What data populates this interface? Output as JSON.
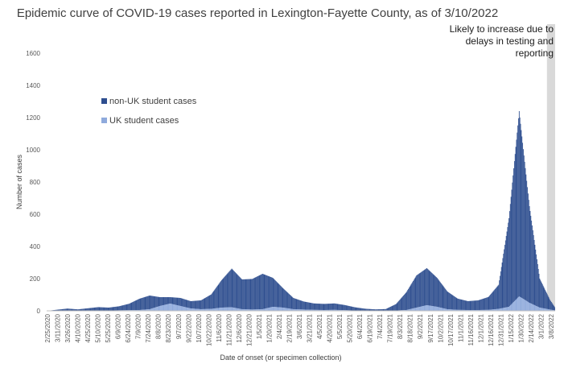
{
  "chart_data": {
    "type": "bar",
    "title": "Epidemic curve of COVID-19 cases reported in Lexington-Fayette County, as of 3/10/2022",
    "xlabel": "Date of onset (or specimen collection)",
    "ylabel": "Number of cases",
    "ylim": [
      0,
      1600
    ],
    "yticks": [
      0,
      200,
      400,
      600,
      800,
      1000,
      1200,
      1400,
      1600
    ],
    "stacked": true,
    "legend_position": "upper-left, inside plot",
    "x_range": [
      "2/25/2020",
      "3/8/2022"
    ],
    "x_tick_labels": [
      "2/25/2020",
      "3/11/2020",
      "3/26/2020",
      "4/10/2020",
      "4/25/2020",
      "5/10/2020",
      "5/25/2020",
      "6/9/2020",
      "6/24/2020",
      "7/9/2020",
      "7/24/2020",
      "8/8/2020",
      "8/23/2020",
      "9/7/2020",
      "9/22/2020",
      "10/7/2020",
      "10/22/2020",
      "11/6/2020",
      "11/21/2020",
      "12/6/2020",
      "12/21/2020",
      "1/5/2021",
      "1/20/2021",
      "2/4/2021",
      "2/19/2021",
      "3/6/2021",
      "3/21/2021",
      "4/5/2021",
      "4/20/2021",
      "5/5/2021",
      "5/20/2021",
      "6/4/2021",
      "6/19/2021",
      "7/4/2021",
      "7/19/2021",
      "8/3/2021",
      "8/18/2021",
      "9/2/2021",
      "9/17/2021",
      "10/2/2021",
      "10/17/2021",
      "11/1/2021",
      "11/16/2021",
      "12/1/2021",
      "12/16/2021",
      "12/31/2021",
      "1/15/2022",
      "1/30/2022",
      "2/14/2022",
      "3/1/2022",
      "3/8/2022"
    ],
    "series": [
      {
        "name": "non-UK student cases",
        "color": "#2e4e8f",
        "points": [
          [
            "2/25/2020",
            0
          ],
          [
            "3/11/2020",
            5
          ],
          [
            "3/26/2020",
            12
          ],
          [
            "4/10/2020",
            8
          ],
          [
            "4/25/2020",
            15
          ],
          [
            "5/10/2020",
            22
          ],
          [
            "5/25/2020",
            18
          ],
          [
            "6/9/2020",
            25
          ],
          [
            "6/24/2020",
            40
          ],
          [
            "7/9/2020",
            70
          ],
          [
            "7/24/2020",
            85
          ],
          [
            "8/8/2020",
            55
          ],
          [
            "8/23/2020",
            40
          ],
          [
            "9/7/2020",
            50
          ],
          [
            "9/22/2020",
            45
          ],
          [
            "10/7/2020",
            55
          ],
          [
            "10/22/2020",
            90
          ],
          [
            "11/6/2020",
            170
          ],
          [
            "11/21/2020",
            240
          ],
          [
            "12/6/2020",
            185
          ],
          [
            "12/21/2020",
            190
          ],
          [
            "1/5/2021",
            220
          ],
          [
            "1/20/2021",
            180
          ],
          [
            "2/4/2021",
            120
          ],
          [
            "2/19/2021",
            70
          ],
          [
            "3/6/2021",
            50
          ],
          [
            "3/21/2021",
            40
          ],
          [
            "4/5/2021",
            38
          ],
          [
            "4/20/2021",
            40
          ],
          [
            "5/5/2021",
            32
          ],
          [
            "5/20/2021",
            20
          ],
          [
            "6/4/2021",
            12
          ],
          [
            "6/19/2021",
            8
          ],
          [
            "7/4/2021",
            10
          ],
          [
            "7/19/2021",
            40
          ],
          [
            "8/3/2021",
            110
          ],
          [
            "8/18/2021",
            200
          ],
          [
            "9/2/2021",
            230
          ],
          [
            "9/17/2021",
            180
          ],
          [
            "10/2/2021",
            110
          ],
          [
            "10/17/2021",
            70
          ],
          [
            "11/1/2021",
            55
          ],
          [
            "11/16/2021",
            60
          ],
          [
            "12/1/2021",
            80
          ],
          [
            "12/16/2021",
            150
          ],
          [
            "12/31/2021",
            550
          ],
          [
            "1/15/2022",
            1150
          ],
          [
            "1/30/2022",
            600
          ],
          [
            "2/14/2022",
            180
          ],
          [
            "3/1/2022",
            60
          ],
          [
            "3/8/2022",
            20
          ]
        ]
      },
      {
        "name": "UK student cases",
        "color": "#8faadc",
        "points": [
          [
            "2/25/2020",
            0
          ],
          [
            "3/11/2020",
            2
          ],
          [
            "3/26/2020",
            2
          ],
          [
            "4/10/2020",
            1
          ],
          [
            "4/25/2020",
            1
          ],
          [
            "5/10/2020",
            1
          ],
          [
            "5/25/2020",
            2
          ],
          [
            "6/9/2020",
            3
          ],
          [
            "6/24/2020",
            4
          ],
          [
            "7/9/2020",
            5
          ],
          [
            "7/24/2020",
            10
          ],
          [
            "8/8/2020",
            30
          ],
          [
            "8/23/2020",
            45
          ],
          [
            "9/7/2020",
            30
          ],
          [
            "9/22/2020",
            15
          ],
          [
            "10/7/2020",
            10
          ],
          [
            "10/22/2020",
            12
          ],
          [
            "11/6/2020",
            20
          ],
          [
            "11/21/2020",
            22
          ],
          [
            "12/6/2020",
            10
          ],
          [
            "12/21/2020",
            8
          ],
          [
            "1/5/2021",
            10
          ],
          [
            "1/20/2021",
            25
          ],
          [
            "2/4/2021",
            20
          ],
          [
            "2/19/2021",
            10
          ],
          [
            "3/6/2021",
            8
          ],
          [
            "3/21/2021",
            6
          ],
          [
            "4/5/2021",
            5
          ],
          [
            "4/20/2021",
            6
          ],
          [
            "5/5/2021",
            4
          ],
          [
            "5/20/2021",
            2
          ],
          [
            "6/4/2021",
            1
          ],
          [
            "6/19/2021",
            1
          ],
          [
            "7/4/2021",
            1
          ],
          [
            "7/19/2021",
            2
          ],
          [
            "8/3/2021",
            5
          ],
          [
            "8/18/2021",
            20
          ],
          [
            "9/2/2021",
            35
          ],
          [
            "9/17/2021",
            25
          ],
          [
            "10/2/2021",
            10
          ],
          [
            "10/17/2021",
            6
          ],
          [
            "11/1/2021",
            5
          ],
          [
            "11/16/2021",
            5
          ],
          [
            "12/1/2021",
            6
          ],
          [
            "12/16/2021",
            12
          ],
          [
            "12/31/2021",
            25
          ],
          [
            "1/15/2022",
            90
          ],
          [
            "1/30/2022",
            50
          ],
          [
            "2/14/2022",
            20
          ],
          [
            "3/1/2022",
            8
          ],
          [
            "3/8/2022",
            3
          ]
        ]
      }
    ],
    "annotation": {
      "lines": [
        "Likely to increase due to",
        "delays in testing and",
        "reporting"
      ],
      "shaded_from": "2/25/2022",
      "shaded_to": "3/8/2022",
      "shade_color": "#d9d9d9"
    }
  }
}
